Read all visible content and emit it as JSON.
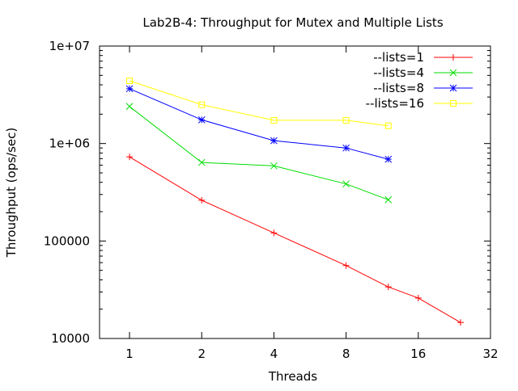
{
  "chart_data": {
    "type": "line",
    "title": "Lab2B-4: Throughput for Mutex and Multiple Lists",
    "xlabel": "Threads",
    "ylabel": "Throughput (ops/sec)",
    "x_scale": "log2",
    "y_scale": "log10",
    "xlim": [
      0.75,
      32
    ],
    "ylim": [
      10000,
      10000000
    ],
    "x_ticks": [
      1,
      2,
      4,
      8,
      16,
      32
    ],
    "x_tick_labels": [
      "1",
      "2",
      "4",
      "8",
      "16",
      "32"
    ],
    "y_ticks": [
      10000,
      100000,
      1000000,
      10000000
    ],
    "y_tick_labels": [
      "10000",
      "100000",
      "1e+06",
      "1e+07"
    ],
    "grid": false,
    "legend_position": "top-right",
    "series": [
      {
        "name": "--lists=1",
        "color": "#ff0000",
        "marker": "plus",
        "x": [
          1,
          2,
          4,
          8,
          12,
          16,
          24
        ],
        "y": [
          730000,
          262000,
          121000,
          56000,
          33800,
          26000,
          14600
        ]
      },
      {
        "name": "--lists=4",
        "color": "#00dd00",
        "marker": "cross",
        "x": [
          1,
          2,
          4,
          8,
          12
        ],
        "y": [
          2400000,
          640000,
          590000,
          385000,
          265000
        ]
      },
      {
        "name": "--lists=8",
        "color": "#0000ff",
        "marker": "star",
        "x": [
          1,
          2,
          4,
          8,
          12
        ],
        "y": [
          3650000,
          1750000,
          1070000,
          900000,
          690000
        ]
      },
      {
        "name": "--lists=16",
        "color": "#ffff00",
        "marker": "square",
        "x": [
          1,
          2,
          4,
          8,
          12
        ],
        "y": [
          4400000,
          2500000,
          1730000,
          1730000,
          1520000
        ]
      }
    ]
  }
}
